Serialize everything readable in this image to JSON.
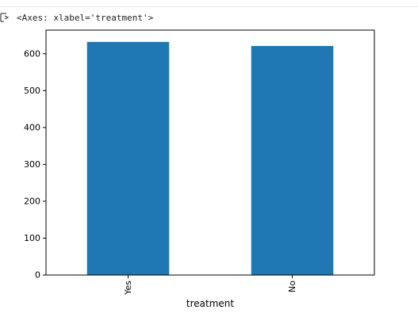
{
  "output": {
    "repr": "<Axes: xlabel='treatment'>",
    "icon": "output-expand-icon"
  },
  "chart_data": {
    "type": "bar",
    "categories": [
      "Yes",
      "No"
    ],
    "values": [
      632,
      621
    ],
    "xlabel": "treatment",
    "ylabel": "",
    "ylim": [
      0,
      664
    ],
    "yticks": [
      0,
      100,
      200,
      300,
      400,
      500,
      600
    ],
    "bar_color": "#1f77b4",
    "grid": false,
    "legend": "none"
  }
}
